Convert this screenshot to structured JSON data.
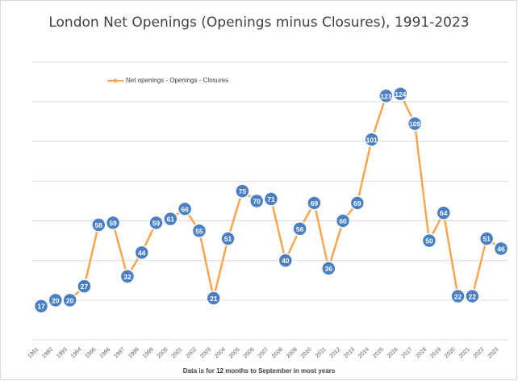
{
  "chart_data": {
    "type": "line",
    "title": "London Net Openings (Openings minus Closures), 1991-2023",
    "xlabel": "Data is  for 12 months to September in most years",
    "ylabel": "",
    "categories": [
      "1991",
      "1992",
      "1993",
      "1994",
      "1995",
      "1996",
      "1997",
      "1998",
      "1999",
      "2000",
      "2001",
      "2002",
      "2003",
      "2004",
      "2005",
      "2006",
      "2007",
      "2008",
      "2009",
      "2010",
      "2011",
      "2012",
      "2013",
      "2014",
      "2015",
      "2016",
      "2017",
      "2018",
      "2019",
      "2020",
      "2021",
      "2022",
      "2023"
    ],
    "series": [
      {
        "name": "Net openings - Openings - Closures",
        "values": [
          17,
          20,
          20,
          27,
          58,
          59,
          32,
          44,
          59,
          61,
          66,
          55,
          21,
          51,
          75,
          70,
          71,
          40,
          56,
          69,
          36,
          60,
          69,
          101,
          123,
          124,
          109,
          50,
          64,
          22,
          22,
          51,
          46
        ]
      }
    ],
    "ylim": [
      0,
      140
    ],
    "grid": "horizontal",
    "legend_position": "top-left",
    "colors": {
      "line": "#f6a64e",
      "marker": "#4a7fc1",
      "grid": "#d9d9d9"
    }
  }
}
